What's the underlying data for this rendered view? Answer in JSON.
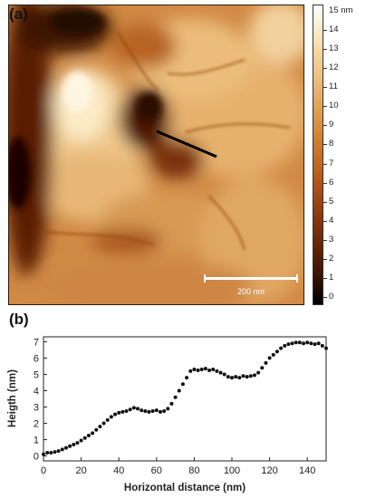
{
  "figure": {
    "panel_a_label": "(a)",
    "panel_b_label": "(b)",
    "scale_bar_label": "200 nm",
    "colorbar": {
      "top_label": "15 nm",
      "ticks": [
        "14",
        "13",
        "12",
        "11",
        "10",
        "9",
        "8",
        "7",
        "6",
        "5",
        "4",
        "3",
        "2",
        "1",
        "0"
      ],
      "low_color": "#000000",
      "mid_color": "#b5581a",
      "high_color": "#ffffff"
    }
  },
  "chart_data": {
    "type": "scatter",
    "xlabel": "Horizontal distance (nm)",
    "ylabel": "Heigth (nm)",
    "xlim": [
      0,
      150
    ],
    "ylim": [
      -0.3,
      7.3
    ],
    "x_ticks": [
      "0",
      "20",
      "40",
      "60",
      "80",
      "100",
      "120",
      "140"
    ],
    "y_ticks": [
      "0",
      "1",
      "2",
      "3",
      "4",
      "5",
      "6",
      "7"
    ],
    "marker_color": "#111111",
    "series": [
      {
        "x": [
          0,
          2,
          4,
          6,
          8,
          10,
          12,
          14,
          16,
          18,
          20,
          22,
          24,
          26,
          28,
          30,
          32,
          34,
          36,
          38,
          40,
          42,
          44,
          46,
          48,
          50,
          52,
          54,
          56,
          58,
          60,
          62,
          64,
          66,
          68,
          70,
          72,
          74,
          76,
          78,
          80,
          82,
          84,
          86,
          88,
          90,
          92,
          94,
          96,
          98,
          100,
          102,
          104,
          106,
          108,
          110,
          112,
          114,
          116,
          118,
          120,
          122,
          124,
          126,
          128,
          130,
          132,
          134,
          136,
          138,
          140,
          142,
          144,
          146,
          148,
          150
        ],
        "y": [
          0.1,
          0.2,
          0.2,
          0.25,
          0.3,
          0.4,
          0.5,
          0.6,
          0.7,
          0.8,
          0.95,
          1.1,
          1.25,
          1.4,
          1.6,
          1.8,
          2.0,
          2.2,
          2.4,
          2.55,
          2.65,
          2.7,
          2.75,
          2.85,
          2.95,
          2.9,
          2.8,
          2.75,
          2.7,
          2.75,
          2.8,
          2.7,
          2.75,
          2.9,
          3.2,
          3.6,
          4.0,
          4.4,
          4.8,
          5.2,
          5.3,
          5.25,
          5.3,
          5.35,
          5.25,
          5.3,
          5.2,
          5.1,
          5.0,
          4.85,
          4.8,
          4.85,
          4.8,
          4.9,
          4.85,
          4.9,
          4.95,
          5.1,
          5.4,
          5.7,
          6.0,
          6.2,
          6.4,
          6.6,
          6.75,
          6.85,
          6.9,
          6.95,
          6.95,
          6.9,
          6.95,
          6.9,
          6.85,
          6.9,
          6.75,
          6.6
        ]
      }
    ]
  }
}
